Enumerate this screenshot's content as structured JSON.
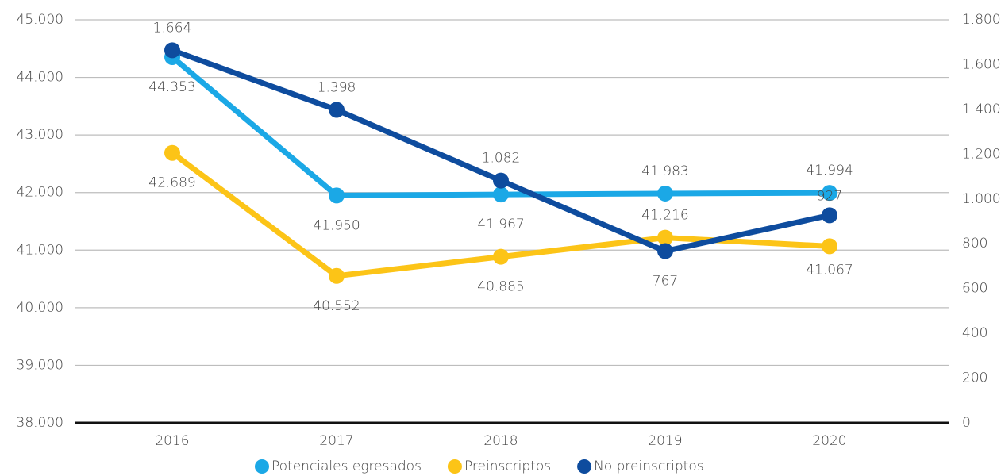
{
  "chart_data": {
    "type": "line",
    "categories": [
      "2016",
      "2017",
      "2018",
      "2019",
      "2020"
    ],
    "series": [
      {
        "name": "Potenciales egresados",
        "color": "#1ba8e6",
        "values": [
          44353,
          41950,
          41967,
          41983,
          41994
        ],
        "value_labels": [
          "44.353",
          "41.950",
          "41.967",
          "41.983",
          "41.994"
        ]
      },
      {
        "name": "Preinscriptos",
        "color": "#fcc417",
        "values": [
          42689,
          40552,
          40885,
          41216,
          41067
        ],
        "value_labels": [
          "42.689",
          "40.552",
          "40.885",
          "41.216",
          "41.067"
        ]
      },
      {
        "name": "No preinscriptos",
        "color": "#0e4c9e",
        "axis": "y2",
        "values": [
          1664,
          1398,
          1082,
          767,
          927
        ],
        "value_labels": [
          "1.664",
          "1.398",
          "1.082",
          "767",
          "927"
        ]
      }
    ],
    "ylim": [
      38000,
      45000
    ],
    "yticks": [
      {
        "value": 38000,
        "label": "38.000"
      },
      {
        "value": 39000,
        "label": "39.000"
      },
      {
        "value": 40000,
        "label": "40.000"
      },
      {
        "value": 41000,
        "label": "41.000"
      },
      {
        "value": 42000,
        "label": "42.000"
      },
      {
        "value": 43000,
        "label": "43.000"
      },
      {
        "value": 44000,
        "label": "44.000"
      },
      {
        "value": 45000,
        "label": "45.000"
      }
    ],
    "y2lim": [
      0,
      1800
    ],
    "y2ticks": [
      0,
      200,
      400,
      600,
      800,
      {
        "value": 1000,
        "label": "1.000"
      },
      {
        "value": 1200,
        "label": "1.200"
      },
      {
        "value": 1400,
        "label": "1.400"
      },
      {
        "value": 1600,
        "label": "1.600"
      },
      {
        "value": 1800,
        "label": "1.800"
      }
    ],
    "grid": true,
    "legend": "bottom"
  }
}
